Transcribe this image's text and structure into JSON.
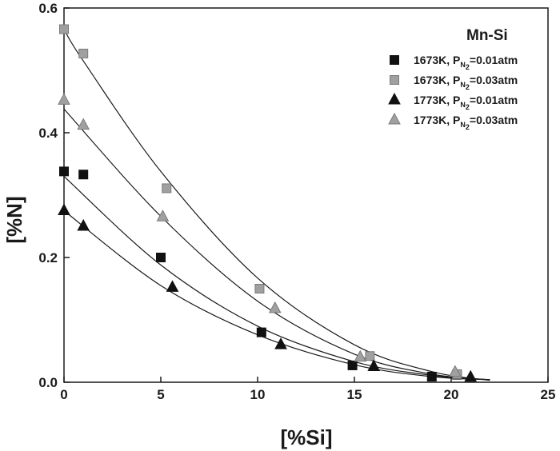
{
  "chart_data": {
    "type": "scatter",
    "title": "",
    "xlabel": "[%Si]",
    "ylabel": "[%N]",
    "xlim": [
      0,
      25
    ],
    "ylim": [
      0,
      0.6
    ],
    "xticks": [
      "0",
      "5",
      "10",
      "15",
      "20",
      "25"
    ],
    "xtick_values": [
      0,
      5,
      10,
      15,
      20,
      25
    ],
    "yticks": [
      "0.0",
      "0.2",
      "0.4",
      "0.6"
    ],
    "ytick_values": [
      0,
      0.2,
      0.4,
      0.6
    ],
    "legend_title": "Mn-Si",
    "legend_position": "top-right",
    "series": [
      {
        "name": "1673K, PN2=0.01atm",
        "label_prefix": "1673K, P",
        "label_sub1": "N",
        "label_sub2": "2",
        "label_suffix": "=0.01atm",
        "marker": "square",
        "color": "#111111",
        "points": [
          [
            0,
            0.338
          ],
          [
            1,
            0.333
          ],
          [
            5,
            0.2
          ],
          [
            10.2,
            0.08
          ],
          [
            14.9,
            0.027
          ],
          [
            19,
            0.009
          ],
          [
            20.3,
            0.012
          ]
        ],
        "fit": [
          [
            0,
            0.33
          ],
          [
            5,
            0.188
          ],
          [
            10,
            0.09
          ],
          [
            15,
            0.033
          ],
          [
            19,
            0.011
          ],
          [
            22,
            0.004
          ]
        ]
      },
      {
        "name": "1673K, PN2=0.03atm",
        "label_prefix": "1673K, P",
        "label_sub1": "N",
        "label_sub2": "2",
        "label_suffix": "=0.03atm",
        "marker": "square",
        "color": "#a0a0a0",
        "points": [
          [
            0,
            0.566
          ],
          [
            1,
            0.527
          ],
          [
            5.3,
            0.311
          ],
          [
            10.1,
            0.15
          ],
          [
            15.8,
            0.042
          ],
          [
            20.3,
            0.013
          ]
        ],
        "fit": [
          [
            0,
            0.566
          ],
          [
            1,
            0.515
          ],
          [
            5,
            0.338
          ],
          [
            10,
            0.167
          ],
          [
            15,
            0.06
          ],
          [
            19,
            0.017
          ],
          [
            22,
            0.003
          ]
        ]
      },
      {
        "name": "1773K, PN2=0.01atm",
        "label_prefix": "1773K, P",
        "label_sub1": "N",
        "label_sub2": "2",
        "label_suffix": "=0.01atm",
        "marker": "triangle",
        "color": "#111111",
        "points": [
          [
            0,
            0.275
          ],
          [
            1,
            0.25
          ],
          [
            5.6,
            0.152
          ],
          [
            11.2,
            0.06
          ],
          [
            16,
            0.025
          ],
          [
            21,
            0.008
          ]
        ],
        "fit": [
          [
            0,
            0.275
          ],
          [
            5,
            0.155
          ],
          [
            10,
            0.076
          ],
          [
            15,
            0.028
          ],
          [
            19,
            0.009
          ],
          [
            22,
            0.004
          ]
        ]
      },
      {
        "name": "1773K, PN2=0.03atm",
        "label_prefix": "1773K, P",
        "label_sub1": "N",
        "label_sub2": "2",
        "label_suffix": "=0.03atm",
        "marker": "triangle",
        "color": "#a0a0a0",
        "points": [
          [
            0,
            0.452
          ],
          [
            1,
            0.412
          ],
          [
            5.1,
            0.265
          ],
          [
            10.9,
            0.118
          ],
          [
            15.3,
            0.04
          ],
          [
            20.2,
            0.016
          ]
        ],
        "fit": [
          [
            0,
            0.438
          ],
          [
            5,
            0.266
          ],
          [
            10,
            0.13
          ],
          [
            15,
            0.045
          ],
          [
            19,
            0.013
          ],
          [
            22,
            0.004
          ]
        ]
      }
    ]
  }
}
